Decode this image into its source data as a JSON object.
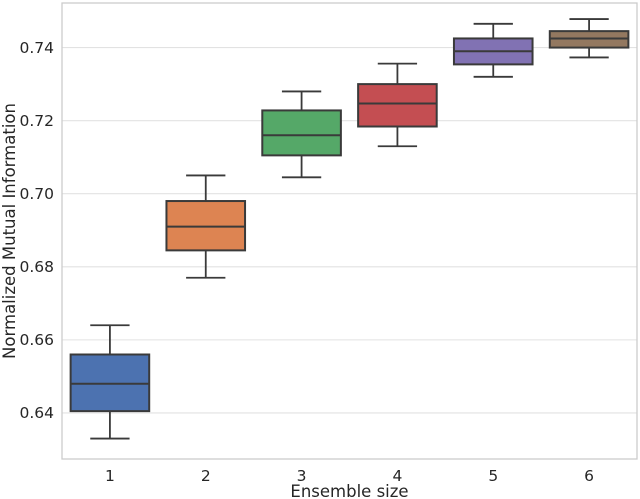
{
  "figure": {
    "background_color": "#ffffff"
  },
  "chart_data": {
    "type": "boxplot",
    "title": "",
    "xlabel": "Ensemble size",
    "ylabel": "Normalized Mutual Information",
    "categories": [
      "1",
      "2",
      "3",
      "4",
      "5",
      "6"
    ],
    "ylim": [
      0.6274,
      0.7522
    ],
    "ytick_values": [
      0.64,
      0.66,
      0.68,
      0.7,
      0.72,
      0.74
    ],
    "ytick_labels": [
      "0.64",
      "0.66",
      "0.68",
      "0.70",
      "0.72",
      "0.74"
    ],
    "grid": "horizontal-only",
    "legend_position": "none",
    "series": [
      {
        "category": "1",
        "color": "#4C72B0",
        "whisker_low": 0.633,
        "q1": 0.6405,
        "median": 0.648,
        "q3": 0.656,
        "whisker_high": 0.664
      },
      {
        "category": "2",
        "color": "#DD8452",
        "whisker_low": 0.677,
        "q1": 0.6845,
        "median": 0.691,
        "q3": 0.698,
        "whisker_high": 0.705
      },
      {
        "category": "3",
        "color": "#55A868",
        "whisker_low": 0.7045,
        "q1": 0.7105,
        "median": 0.716,
        "q3": 0.7228,
        "whisker_high": 0.728
      },
      {
        "category": "4",
        "color": "#C44E52",
        "whisker_low": 0.713,
        "q1": 0.7184,
        "median": 0.7247,
        "q3": 0.73,
        "whisker_high": 0.7356
      },
      {
        "category": "5",
        "color": "#8172B3",
        "whisker_low": 0.732,
        "q1": 0.7354,
        "median": 0.739,
        "q3": 0.7425,
        "whisker_high": 0.7465
      },
      {
        "category": "6",
        "color": "#937860",
        "whisker_low": 0.7373,
        "q1": 0.74,
        "median": 0.7425,
        "q3": 0.7445,
        "whisker_high": 0.7478
      }
    ],
    "style": {
      "box_edge_color": "#3a3a3a",
      "median_color": "#3a3a3a",
      "whisker_color": "#3a3a3a",
      "grid_color": "#e2e2e2",
      "spine_color": "#cccccc",
      "text_color": "#262626"
    }
  }
}
